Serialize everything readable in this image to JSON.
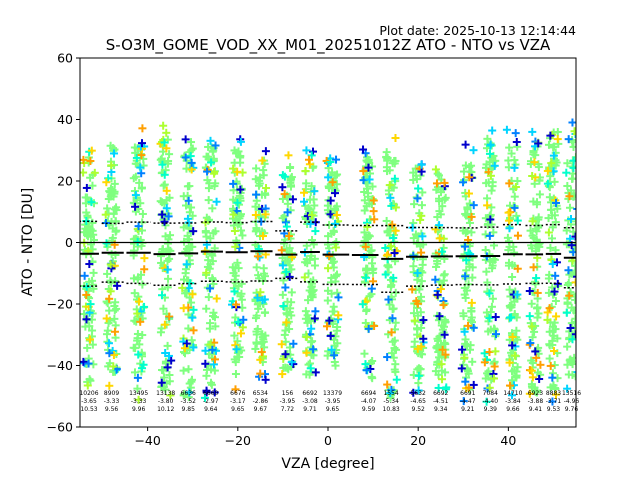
{
  "chart_data": {
    "type": "scatter",
    "title": "S-O3M_GOME_VOD_XX_M01_20251012Z ATO - NTO vs VZA",
    "plot_date": "Plot date: 2025-10-13 12:14:44",
    "xlabel": "VZA [degree]",
    "ylabel": "ATO - NTO [DU]",
    "xlim": [
      -55,
      55
    ],
    "ylim": [
      -60,
      60
    ],
    "xticks": [
      -40,
      -20,
      0,
      20,
      40
    ],
    "yticks": [
      -60,
      -40,
      -20,
      0,
      20,
      40,
      60
    ],
    "zero_line": 0,
    "colors": {
      "main": "#7fff7f",
      "scatter_palette": [
        "#7fff7f",
        "#00d4ff",
        "#ffd700",
        "#adff2f",
        "#0080ff",
        "#00ffcc",
        "#0000cc",
        "#ff9f00"
      ],
      "axis": "#000000",
      "background": "#ffffff"
    },
    "bins": [
      {
        "vza": -53,
        "count": "10206",
        "mean": -3.65,
        "std": 10.53,
        "spread": [
          -50,
          32
        ],
        "mean_label": "-3.65",
        "std_label": "10.53"
      },
      {
        "vza": -48,
        "count": "8909",
        "mean": -3.33,
        "std": 9.56,
        "spread": [
          -48,
          36
        ],
        "mean_label": "-3.33",
        "std_label": "9.56"
      },
      {
        "vza": -42,
        "count": "13495",
        "mean": -3.33,
        "std": 9.96,
        "spread": [
          -52,
          38
        ],
        "mean_label": "-3.33",
        "std_label": "9.96"
      },
      {
        "vza": -36,
        "count": "13138",
        "mean": -3.8,
        "std": 10.12,
        "spread": [
          -52,
          40
        ],
        "mean_label": "-3.80",
        "std_label": "10.12"
      },
      {
        "vza": -31,
        "count": "6636",
        "mean": -3.52,
        "std": 9.85,
        "spread": [
          -55,
          37
        ],
        "mean_label": "-3.52",
        "std_label": "9.85"
      },
      {
        "vza": -26,
        "count": "6660",
        "mean": -2.97,
        "std": 9.64,
        "spread": [
          -52,
          38
        ],
        "mean_label": "-2.97",
        "std_label": "9.64"
      },
      {
        "vza": -20,
        "count": "6676",
        "mean": -3.17,
        "std": 9.65,
        "spread": [
          -48,
          34
        ],
        "mean_label": "-3.17",
        "std_label": "9.65"
      },
      {
        "vza": -15,
        "count": "6534",
        "mean": -2.86,
        "std": 9.67,
        "spread": [
          -46,
          32
        ],
        "mean_label": "-2.86",
        "std_label": "9.67"
      },
      {
        "vza": -9,
        "count": "156",
        "mean": -3.95,
        "std": 7.72,
        "spread": [
          -46,
          30
        ],
        "mean_label": "-3.95",
        "std_label": "7.72"
      },
      {
        "vza": -4,
        "count": "6692",
        "mean": -3.08,
        "std": 9.71,
        "spread": [
          -47,
          30
        ],
        "mean_label": "-3.08",
        "std_label": "9.71"
      },
      {
        "vza": 1,
        "count": "13379",
        "mean": -3.95,
        "std": 9.65,
        "spread": [
          -45,
          29
        ],
        "mean_label": "-3.95",
        "std_label": "9.65"
      },
      {
        "vza": 9,
        "count": "6694",
        "mean": -4.07,
        "std": 9.59,
        "spread": [
          -50,
          32
        ],
        "mean_label": "-4.07",
        "std_label": "9.59"
      },
      {
        "vza": 14,
        "count": "1554",
        "mean": -5.34,
        "std": 10.83,
        "spread": [
          -55,
          34
        ],
        "mean_label": "-5.34",
        "std_label": "10.83"
      },
      {
        "vza": 20,
        "count": "5632",
        "mean": -4.65,
        "std": 9.52,
        "spread": [
          -52,
          30
        ],
        "mean_label": "-4.65",
        "std_label": "9.52"
      },
      {
        "vza": 25,
        "count": "6692",
        "mean": -4.51,
        "std": 9.34,
        "spread": [
          -50,
          28
        ],
        "mean_label": "-4.51",
        "std_label": "9.34"
      },
      {
        "vza": 31,
        "count": "6691",
        "mean": -4.47,
        "std": 9.21,
        "spread": [
          -52,
          32
        ],
        "mean_label": "-4.47",
        "std_label": "9.21"
      },
      {
        "vza": 36,
        "count": "7084",
        "mean": -4.4,
        "std": 9.39,
        "spread": [
          -53,
          38
        ],
        "mean_label": "-4.40",
        "std_label": "9.39"
      },
      {
        "vza": 41,
        "count": "14710",
        "mean": -3.84,
        "std": 9.66,
        "spread": [
          -52,
          37
        ],
        "mean_label": "-3.84",
        "std_label": "9.66"
      },
      {
        "vza": 46,
        "count": "6923",
        "mean": -3.88,
        "std": 9.41,
        "spread": [
          -53,
          36
        ],
        "mean_label": "-3.88",
        "std_label": "9.41"
      },
      {
        "vza": 50,
        "count": "8883",
        "mean": -3.71,
        "std": 9.53,
        "spread": [
          -52,
          40
        ],
        "mean_label": "-3.71",
        "std_label": "9.53"
      },
      {
        "vza": 54,
        "count": "13516",
        "mean": -4.96,
        "std": 9.76,
        "spread": [
          -50,
          40
        ],
        "mean_label": "-4.96",
        "std_label": "9.76"
      }
    ]
  }
}
